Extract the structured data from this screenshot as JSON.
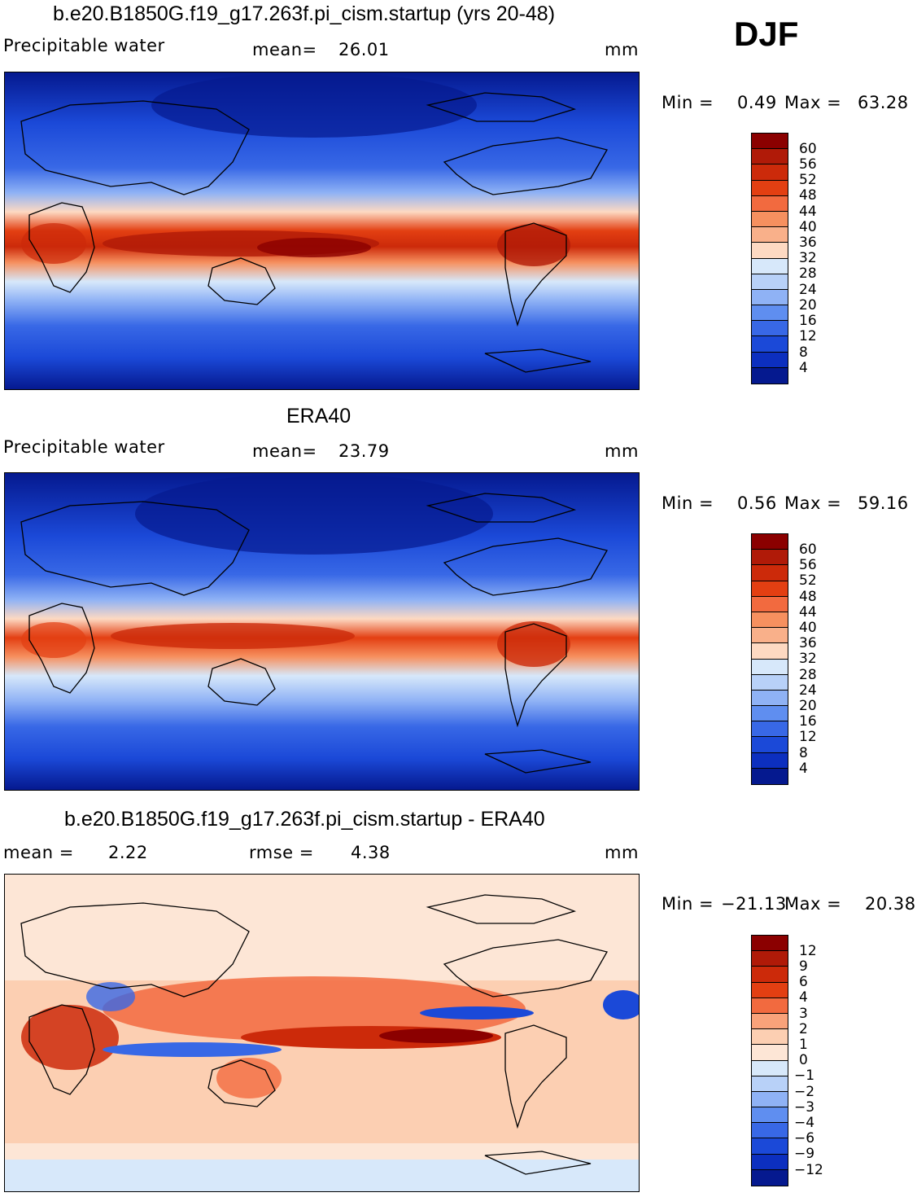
{
  "season": "DJF",
  "panels": [
    {
      "title": "b.e20.B1850G.f19_g17.263f.pi_cism.startup (yrs 20-48)",
      "field": "Precipitable water",
      "stat1_label": "mean=",
      "stat1_value": "26.01",
      "units": "mm",
      "min_label": "Min =",
      "min_value": "0.49",
      "max_label": "Max =",
      "max_value": "63.28",
      "colorbar": {
        "ticks": [
          "60",
          "56",
          "52",
          "48",
          "44",
          "40",
          "36",
          "32",
          "28",
          "24",
          "20",
          "16",
          "12",
          "8",
          "4"
        ],
        "colors": [
          "#8b0000",
          "#b01a08",
          "#cc2a0a",
          "#e33f12",
          "#f26a3f",
          "#f6905f",
          "#f9b08a",
          "#fdd9c2",
          "#d7e8fa",
          "#b8d1f8",
          "#8fb2f5",
          "#5f8ef0",
          "#3868e6",
          "#1b49d8",
          "#0c2fbf",
          "#05198f"
        ]
      }
    },
    {
      "title": "ERA40",
      "field": "Precipitable water",
      "stat1_label": "mean=",
      "stat1_value": "23.79",
      "units": "mm",
      "min_label": "Min =",
      "min_value": "0.56",
      "max_label": "Max =",
      "max_value": "59.16",
      "colorbar": {
        "ticks": [
          "60",
          "56",
          "52",
          "48",
          "44",
          "40",
          "36",
          "32",
          "28",
          "24",
          "20",
          "16",
          "12",
          "8",
          "4"
        ],
        "colors": [
          "#8b0000",
          "#b01a08",
          "#cc2a0a",
          "#e33f12",
          "#f26a3f",
          "#f6905f",
          "#f9b08a",
          "#fdd9c2",
          "#d7e8fa",
          "#b8d1f8",
          "#8fb2f5",
          "#5f8ef0",
          "#3868e6",
          "#1b49d8",
          "#0c2fbf",
          "#05198f"
        ]
      }
    },
    {
      "title": "b.e20.B1850G.f19_g17.263f.pi_cism.startup - ERA40",
      "stat1_label": "mean =",
      "stat1_value": "2.22",
      "stat2_label": "rmse =",
      "stat2_value": "4.38",
      "units": "mm",
      "min_label": "Min =",
      "min_value": "−21.13",
      "max_label": "Max =",
      "max_value": "20.38",
      "colorbar": {
        "ticks": [
          "12",
          "9",
          "6",
          "4",
          "3",
          "2",
          "1",
          "0",
          "−1",
          "−2",
          "−3",
          "−4",
          "−6",
          "−9",
          "−12"
        ],
        "colors": [
          "#8b0000",
          "#b01a08",
          "#cc2a0a",
          "#e33f12",
          "#f26a3f",
          "#f9a27a",
          "#fccfb2",
          "#fde6d6",
          "#d7e8fa",
          "#b8d1f8",
          "#8fb2f5",
          "#5f8ef0",
          "#3868e6",
          "#1b49d8",
          "#0c2fbf",
          "#05198f"
        ]
      }
    }
  ]
}
